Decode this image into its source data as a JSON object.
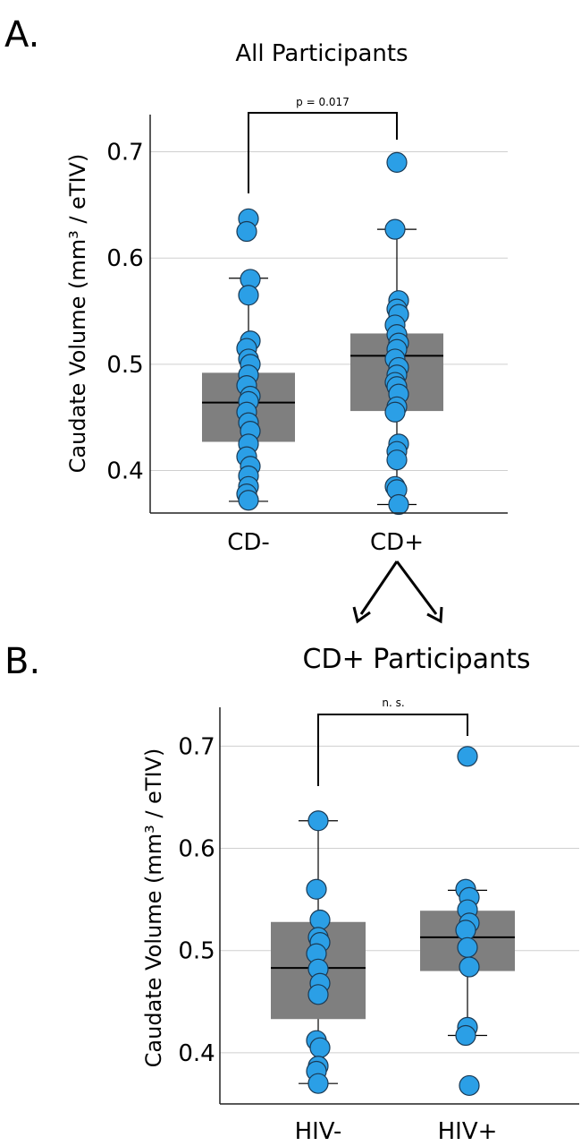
{
  "panel_a_letter": "A.",
  "panel_b_letter": "B.",
  "chart_data": [
    {
      "type": "box",
      "title": "All Participants",
      "ylabel": "Caudate Volume (mm³ / eTIV)",
      "ylim": [
        0.36,
        0.735
      ],
      "yticks": [
        0.4,
        0.5,
        0.6,
        0.7
      ],
      "ytick_labels": [
        "0.4",
        "0.5",
        "0.6",
        "0.7"
      ],
      "grid": true,
      "categories": [
        "CD-",
        "CD+"
      ],
      "comparison": "p = 0.017",
      "box_color": "#7f7f7f",
      "point_color": "#2b9fe6",
      "boxes": [
        {
          "category": "CD-",
          "whisker_low": 0.371,
          "q1": 0.427,
          "median": 0.464,
          "q3": 0.492,
          "whisker_high": 0.581
        },
        {
          "category": "CD+",
          "whisker_low": 0.368,
          "q1": 0.456,
          "median": 0.508,
          "q3": 0.529,
          "whisker_high": 0.627
        }
      ],
      "points": [
        [
          0.637,
          0.625,
          0.58,
          0.565,
          0.522,
          0.515,
          0.505,
          0.5,
          0.49,
          0.48,
          0.47,
          0.465,
          0.455,
          0.445,
          0.437,
          0.425,
          0.413,
          0.404,
          0.395,
          0.385,
          0.378,
          0.372
        ],
        [
          0.69,
          0.627,
          0.56,
          0.552,
          0.547,
          0.537,
          0.528,
          0.52,
          0.514,
          0.505,
          0.497,
          0.49,
          0.483,
          0.479,
          0.472,
          0.46,
          0.455,
          0.425,
          0.418,
          0.41,
          0.385,
          0.382,
          0.368
        ]
      ]
    },
    {
      "type": "box",
      "title": "CD+ Participants",
      "ylabel": "Caudate Volume (mm³ / eTIV)",
      "ylim": [
        0.35,
        0.738
      ],
      "yticks": [
        0.4,
        0.5,
        0.6,
        0.7
      ],
      "ytick_labels": [
        "0.4",
        "0.5",
        "0.6",
        "0.7"
      ],
      "grid": true,
      "categories": [
        "HIV-",
        "HIV+"
      ],
      "comparison": "n. s.",
      "box_color": "#7f7f7f",
      "point_color": "#2b9fe6",
      "boxes": [
        {
          "category": "HIV-",
          "whisker_low": 0.37,
          "q1": 0.433,
          "median": 0.483,
          "q3": 0.528,
          "whisker_high": 0.627
        },
        {
          "category": "HIV+",
          "whisker_low": 0.417,
          "q1": 0.48,
          "median": 0.513,
          "q3": 0.539,
          "whisker_high": 0.559
        }
      ],
      "points": [
        [
          0.627,
          0.56,
          0.53,
          0.513,
          0.508,
          0.497,
          0.482,
          0.468,
          0.457,
          0.412,
          0.405,
          0.387,
          0.382,
          0.37
        ],
        [
          0.69,
          0.56,
          0.552,
          0.54,
          0.527,
          0.52,
          0.503,
          0.484,
          0.425,
          0.417,
          0.368
        ]
      ]
    }
  ]
}
